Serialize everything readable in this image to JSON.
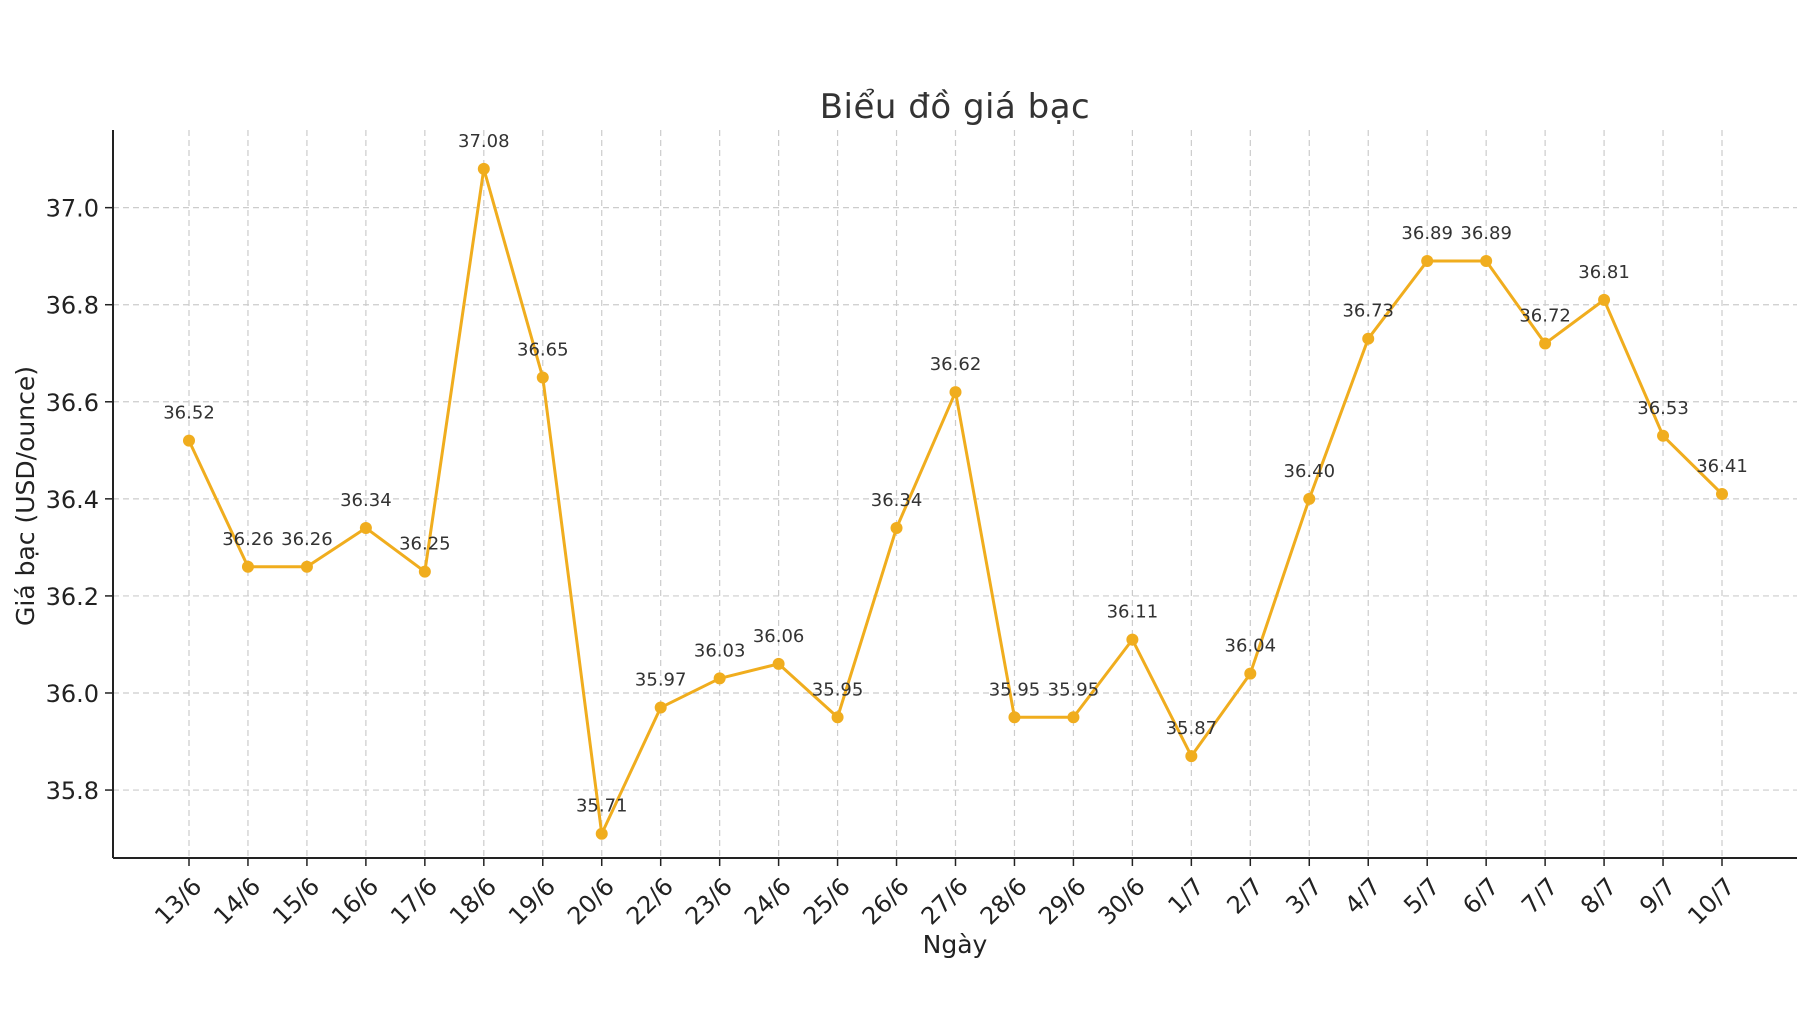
{
  "chart_data": {
    "type": "line",
    "title": "Biểu đồ giá bạc",
    "xlabel": "Ngày",
    "ylabel": "Giá bạc (USD/ounce)",
    "categories": [
      "13/6",
      "14/6",
      "15/6",
      "16/6",
      "17/6",
      "18/6",
      "19/6",
      "20/6",
      "22/6",
      "23/6",
      "24/6",
      "25/6",
      "26/6",
      "27/6",
      "28/6",
      "29/6",
      "30/6",
      "1/7",
      "2/7",
      "3/7",
      "4/7",
      "5/7",
      "6/7",
      "7/7",
      "8/7",
      "9/7",
      "10/7"
    ],
    "values": [
      36.52,
      36.26,
      36.26,
      36.34,
      36.25,
      37.08,
      36.65,
      35.71,
      35.97,
      36.03,
      36.06,
      35.95,
      36.34,
      36.62,
      35.95,
      35.95,
      36.11,
      35.87,
      36.04,
      36.4,
      36.73,
      36.89,
      36.89,
      36.72,
      36.81,
      36.53,
      36.41
    ],
    "value_labels": [
      "36.52",
      "36.26",
      "36.26",
      "36.34",
      "36.25",
      "37.08",
      "36.65",
      "35.71",
      "35.97",
      "36.03",
      "36.06",
      "35.95",
      "36.34",
      "36.62",
      "35.95",
      "35.95",
      "36.11",
      "35.87",
      "36.04",
      "36.40",
      "36.73",
      "36.89",
      "36.89",
      "36.72",
      "36.81",
      "36.53",
      "36.41"
    ],
    "yticks": [
      "35.8",
      "36.0",
      "36.2",
      "36.4",
      "36.6",
      "36.8",
      "37.0"
    ],
    "ylim": [
      35.66,
      37.16
    ],
    "grid": true,
    "color": "#f0ad1e"
  }
}
